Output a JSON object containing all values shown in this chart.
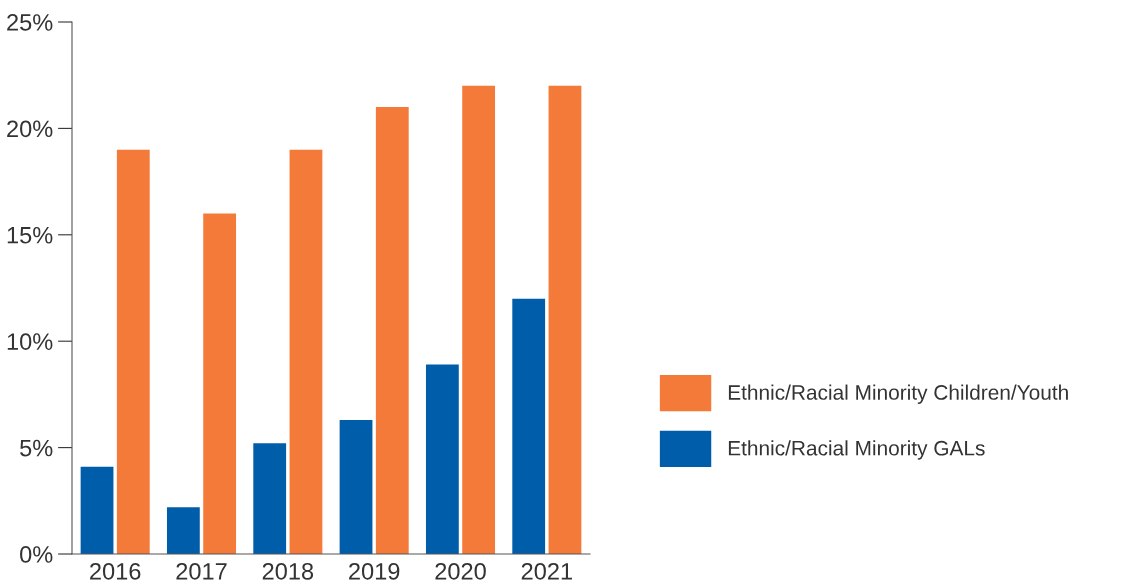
{
  "chart_data": {
    "type": "bar",
    "categories": [
      "2016",
      "2017",
      "2018",
      "2019",
      "2020",
      "2021"
    ],
    "series": [
      {
        "name": "Ethnic/Racial Minority GALs",
        "color": "#005daa",
        "values": [
          4.1,
          2.2,
          5.2,
          6.3,
          8.9,
          12.0
        ]
      },
      {
        "name": "Ethnic/Racial Minority Children/Youth",
        "color": "#f47a3a",
        "values": [
          19,
          16,
          19,
          21,
          22,
          22
        ]
      }
    ],
    "ylim": [
      0,
      25
    ],
    "yticks": [
      {
        "value": 0,
        "label": "0%"
      },
      {
        "value": 5,
        "label": "5%"
      },
      {
        "value": 10,
        "label": "10%"
      },
      {
        "value": 15,
        "label": "15%"
      },
      {
        "value": 20,
        "label": "20%"
      },
      {
        "value": 25,
        "label": "25%"
      }
    ],
    "grid": false,
    "legend": "right"
  }
}
